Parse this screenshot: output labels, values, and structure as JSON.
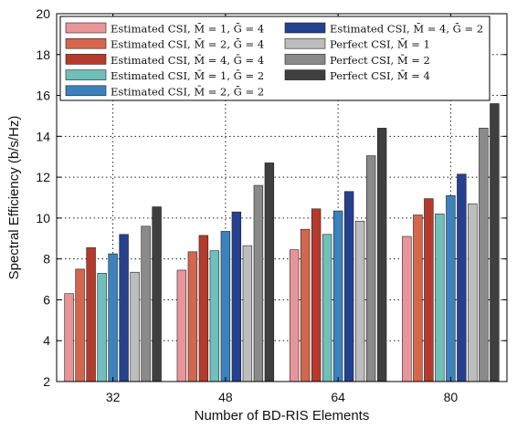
{
  "chart_data": {
    "type": "bar",
    "xlabel": "Number of BD-RIS Elements",
    "ylabel": "Spectral Efficiency (b/s/Hz)",
    "categories": [
      "32",
      "48",
      "64",
      "80"
    ],
    "ylim": [
      2,
      20
    ],
    "yticks": [
      2,
      4,
      6,
      8,
      10,
      12,
      14,
      16,
      18,
      20
    ],
    "grid": true,
    "legend_position": "top, two columns",
    "series": [
      {
        "name": "Estimated CSI, M̄ = 1, Ḡ = 4",
        "color": "#e8959a",
        "values": [
          6.3,
          7.45,
          8.45,
          9.1
        ]
      },
      {
        "name": "Estimated CSI, M̄ = 2, Ḡ = 4",
        "color": "#d4664e",
        "values": [
          7.5,
          8.35,
          9.45,
          10.15
        ]
      },
      {
        "name": "Estimated CSI, M̄ = 4, Ḡ = 4",
        "color": "#b63a2b",
        "values": [
          8.55,
          9.15,
          10.45,
          10.95
        ]
      },
      {
        "name": "Estimated CSI, M̄ = 1, Ḡ = 2",
        "color": "#6fbfbb",
        "values": [
          7.3,
          8.4,
          9.2,
          10.2
        ]
      },
      {
        "name": "Estimated CSI, M̄ = 2, Ḡ = 2",
        "color": "#3b82bf",
        "values": [
          8.25,
          9.35,
          10.35,
          11.1
        ]
      },
      {
        "name": "Estimated CSI, M̄ = 4, Ḡ = 2",
        "color": "#24408e",
        "values": [
          9.2,
          10.3,
          11.3,
          12.15
        ]
      },
      {
        "name": "Perfect CSI, M̄ = 1",
        "color": "#bdbdbd",
        "values": [
          7.35,
          8.65,
          9.85,
          10.7
        ]
      },
      {
        "name": "Perfect CSI, M̄ = 2",
        "color": "#8a8a8a",
        "values": [
          9.6,
          11.6,
          13.05,
          14.4
        ]
      },
      {
        "name": "Perfect CSI, M̄ = 4",
        "color": "#3f3f3f",
        "values": [
          10.55,
          12.7,
          14.4,
          15.6
        ]
      }
    ]
  }
}
